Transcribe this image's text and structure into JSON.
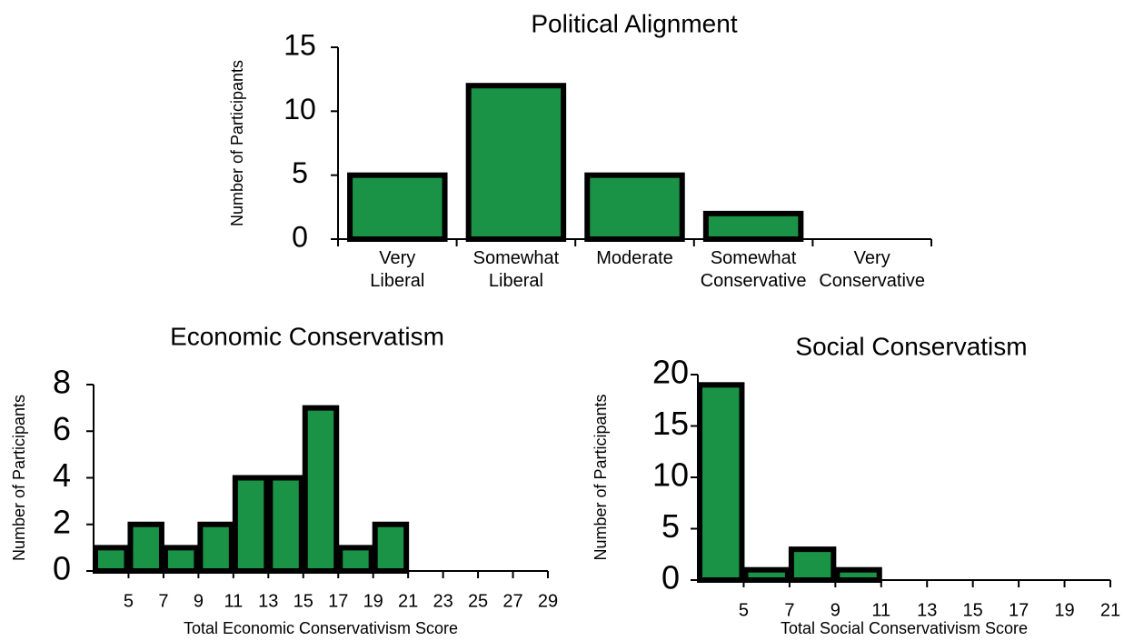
{
  "chart_data": [
    {
      "type": "bar",
      "title": "Political Alignment",
      "ylabel": "Number of Participants",
      "categories": [
        "Very Liberal",
        "Somewhat Liberal",
        "Moderate",
        "Somewhat Conservative",
        "Very Conservative"
      ],
      "values": [
        5,
        12,
        5,
        2,
        0
      ],
      "color": "#1b9346",
      "ylim": [
        0,
        15
      ],
      "yticks": [
        0,
        5,
        10,
        15
      ]
    },
    {
      "type": "histogram",
      "title": "Economic Conservatism",
      "ylabel": "Number of Participants",
      "xlabel": "Total Economic Conservativism Score",
      "bins": [
        3,
        5,
        7,
        9,
        11,
        13,
        15,
        17,
        19,
        21
      ],
      "values": [
        1,
        2,
        1,
        2,
        4,
        4,
        7,
        1,
        2
      ],
      "color": "#1b9346",
      "xlim": [
        3,
        29
      ],
      "xticks": [
        5,
        7,
        9,
        11,
        13,
        15,
        17,
        19,
        21,
        23,
        25,
        27,
        29
      ],
      "ylim": [
        0,
        8
      ],
      "yticks": [
        0,
        2,
        4,
        6,
        8
      ]
    },
    {
      "type": "histogram",
      "title": "Social Conservatism",
      "ylabel": "Number of Participants",
      "xlabel": "Total Social Conservativism Score",
      "bins": [
        3,
        5,
        7,
        9,
        11
      ],
      "values": [
        19,
        1,
        3,
        1
      ],
      "color": "#1b9346",
      "xlim": [
        3,
        21
      ],
      "xticks": [
        5,
        7,
        9,
        11,
        13,
        15,
        17,
        19,
        21
      ],
      "ylim": [
        0,
        20
      ],
      "yticks": [
        0,
        5,
        10,
        15,
        20
      ]
    }
  ]
}
